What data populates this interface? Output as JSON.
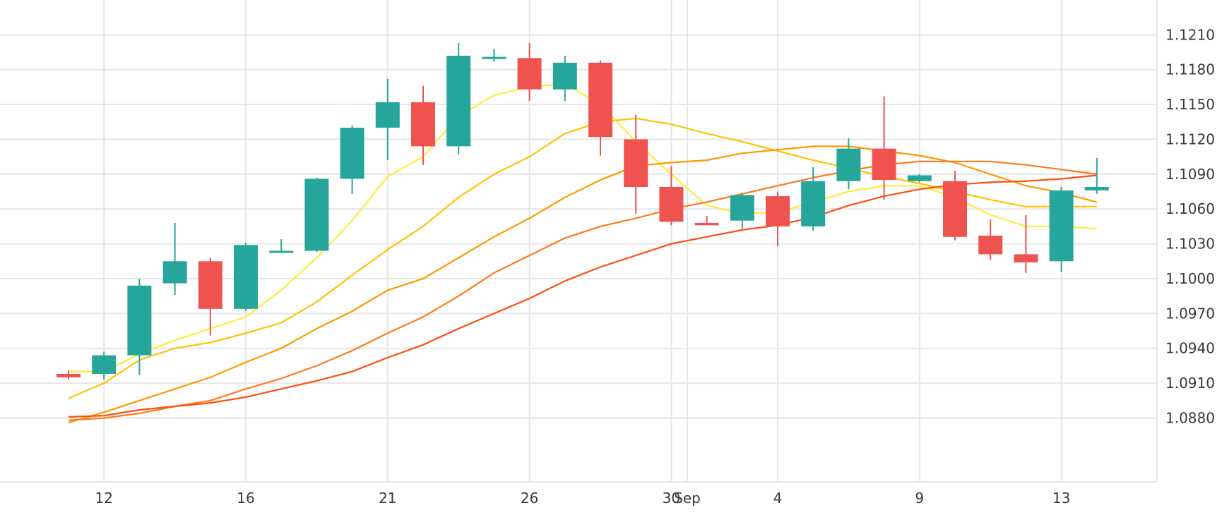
{
  "chart_data": {
    "type": "candlestick",
    "y_axis_position": "right",
    "ylim": [
      1.0825,
      1.124
    ],
    "grid": true,
    "colors": {
      "up": "#26a69a",
      "down": "#ef5350",
      "grid": "#e6e6e6",
      "text": "#3a3a3a"
    },
    "x_tick_labels": [
      {
        "idx": 1,
        "label": "12"
      },
      {
        "idx": 5,
        "label": "16"
      },
      {
        "idx": 9,
        "label": "21"
      },
      {
        "idx": 13,
        "label": "26"
      },
      {
        "idx": 17,
        "label": "30"
      },
      {
        "idx": 17.45,
        "label": "Sep"
      },
      {
        "idx": 20,
        "label": "4"
      },
      {
        "idx": 24,
        "label": "9"
      },
      {
        "idx": 28,
        "label": "13"
      }
    ],
    "y_tick_labels": [
      "1.0880",
      "1.0910",
      "1.0940",
      "1.0970",
      "1.1000",
      "1.1030",
      "1.1060",
      "1.1090",
      "1.1120",
      "1.1150",
      "1.1180",
      "1.1210"
    ],
    "y_tick_values": [
      1.088,
      1.091,
      1.094,
      1.097,
      1.1,
      1.103,
      1.106,
      1.109,
      1.112,
      1.115,
      1.118,
      1.121
    ],
    "candles": [
      {
        "o": 1.0918,
        "h": 1.0921,
        "l": 1.0913,
        "c": 1.0915
      },
      {
        "o": 1.0918,
        "h": 1.0937,
        "l": 1.0913,
        "c": 1.0934
      },
      {
        "o": 1.0934,
        "h": 1.1,
        "l": 1.0917,
        "c": 1.0994
      },
      {
        "o": 1.0996,
        "h": 1.1048,
        "l": 1.0986,
        "c": 1.1015
      },
      {
        "o": 1.1015,
        "h": 1.1018,
        "l": 1.0951,
        "c": 1.0974
      },
      {
        "o": 1.0974,
        "h": 1.1031,
        "l": 1.0972,
        "c": 1.1029
      },
      {
        "o": 1.1023,
        "h": 1.1034,
        "l": 1.1023,
        "c": 1.1024
      },
      {
        "o": 1.1024,
        "h": 1.1087,
        "l": 1.1023,
        "c": 1.1086
      },
      {
        "o": 1.1086,
        "h": 1.1132,
        "l": 1.1073,
        "c": 1.113
      },
      {
        "o": 1.113,
        "h": 1.1172,
        "l": 1.1102,
        "c": 1.1152
      },
      {
        "o": 1.1152,
        "h": 1.1166,
        "l": 1.1098,
        "c": 1.1114
      },
      {
        "o": 1.1114,
        "h": 1.1203,
        "l": 1.1107,
        "c": 1.1192
      },
      {
        "o": 1.1191,
        "h": 1.1198,
        "l": 1.1187,
        "c": 1.1191
      },
      {
        "o": 1.119,
        "h": 1.1203,
        "l": 1.1153,
        "c": 1.1163
      },
      {
        "o": 1.1163,
        "h": 1.1192,
        "l": 1.1153,
        "c": 1.1186
      },
      {
        "o": 1.1186,
        "h": 1.1188,
        "l": 1.1106,
        "c": 1.1122
      },
      {
        "o": 1.112,
        "h": 1.1141,
        "l": 1.1056,
        "c": 1.1079
      },
      {
        "o": 1.1079,
        "h": 1.1097,
        "l": 1.1046,
        "c": 1.1049
      },
      {
        "o": 1.1048,
        "h": 1.1054,
        "l": 1.1046,
        "c": 1.1046
      },
      {
        "o": 1.105,
        "h": 1.1074,
        "l": 1.1043,
        "c": 1.1072
      },
      {
        "o": 1.1071,
        "h": 1.1075,
        "l": 1.1028,
        "c": 1.1045
      },
      {
        "o": 1.1045,
        "h": 1.1096,
        "l": 1.1041,
        "c": 1.1084
      },
      {
        "o": 1.1084,
        "h": 1.1121,
        "l": 1.1077,
        "c": 1.1112
      },
      {
        "o": 1.1112,
        "h": 1.1157,
        "l": 1.1068,
        "c": 1.1085
      },
      {
        "o": 1.1084,
        "h": 1.109,
        "l": 1.1083,
        "c": 1.1089
      },
      {
        "o": 1.1084,
        "h": 1.1093,
        "l": 1.1033,
        "c": 1.1036
      },
      {
        "o": 1.1037,
        "h": 1.1051,
        "l": 1.1016,
        "c": 1.1021
      },
      {
        "o": 1.1021,
        "h": 1.1055,
        "l": 1.1005,
        "c": 1.1014
      },
      {
        "o": 1.1015,
        "h": 1.1079,
        "l": 1.1006,
        "c": 1.1076
      },
      {
        "o": 1.1076,
        "h": 1.1104,
        "l": 1.1073,
        "c": 1.1079
      }
    ],
    "moving_averages": [
      {
        "color": "#ffeb3b",
        "values": [
          1.092,
          1.092,
          1.0935,
          1.0947,
          1.0957,
          1.0967,
          1.099,
          1.1018,
          1.105,
          1.1088,
          1.1105,
          1.114,
          1.1158,
          1.1165,
          1.1168,
          1.115,
          1.1118,
          1.109,
          1.1063,
          1.1056,
          1.1057,
          1.1066,
          1.1075,
          1.108,
          1.108,
          1.107,
          1.1055,
          1.1045,
          1.1045,
          1.1043
        ]
      },
      {
        "color": "#ffc107",
        "values": [
          1.0897,
          1.091,
          1.093,
          1.094,
          1.0945,
          1.0953,
          1.0962,
          1.098,
          1.1003,
          1.1025,
          1.1045,
          1.107,
          1.109,
          1.1105,
          1.1125,
          1.1135,
          1.1138,
          1.1133,
          1.1125,
          1.1118,
          1.111,
          1.1102,
          1.1095,
          1.1088,
          1.1082,
          1.1075,
          1.1068,
          1.1062,
          1.1062,
          1.1062
        ]
      },
      {
        "color": "#ff9800",
        "values": [
          1.0876,
          1.0885,
          1.0895,
          1.0905,
          1.0915,
          1.0928,
          1.094,
          1.0957,
          1.0972,
          1.099,
          1.1,
          1.1018,
          1.1036,
          1.1052,
          1.107,
          1.1085,
          1.1097,
          1.11,
          1.1102,
          1.1108,
          1.1111,
          1.1114,
          1.1114,
          1.111,
          1.1106,
          1.11,
          1.109,
          1.108,
          1.1074,
          1.1066
        ]
      },
      {
        "color": "#ff7a1a",
        "values": [
          1.0878,
          1.088,
          1.0884,
          1.089,
          1.0895,
          1.0905,
          1.0914,
          1.0925,
          1.0938,
          1.0953,
          1.0967,
          1.0985,
          1.1005,
          1.102,
          1.1035,
          1.1045,
          1.1052,
          1.106,
          1.1066,
          1.1073,
          1.108,
          1.1087,
          1.1093,
          1.1098,
          1.1101,
          1.1101,
          1.1101,
          1.1098,
          1.1094,
          1.109
        ]
      },
      {
        "color": "#ff4d0d",
        "values": [
          1.0881,
          1.0882,
          1.0887,
          1.089,
          1.0893,
          1.0898,
          1.0905,
          1.0912,
          1.092,
          1.0932,
          1.0943,
          1.0957,
          1.097,
          1.0983,
          1.0998,
          1.101,
          1.102,
          1.103,
          1.1036,
          1.1042,
          1.1046,
          1.1053,
          1.1063,
          1.1071,
          1.1077,
          1.1081,
          1.1083,
          1.1084,
          1.1086,
          1.1089
        ]
      }
    ]
  }
}
